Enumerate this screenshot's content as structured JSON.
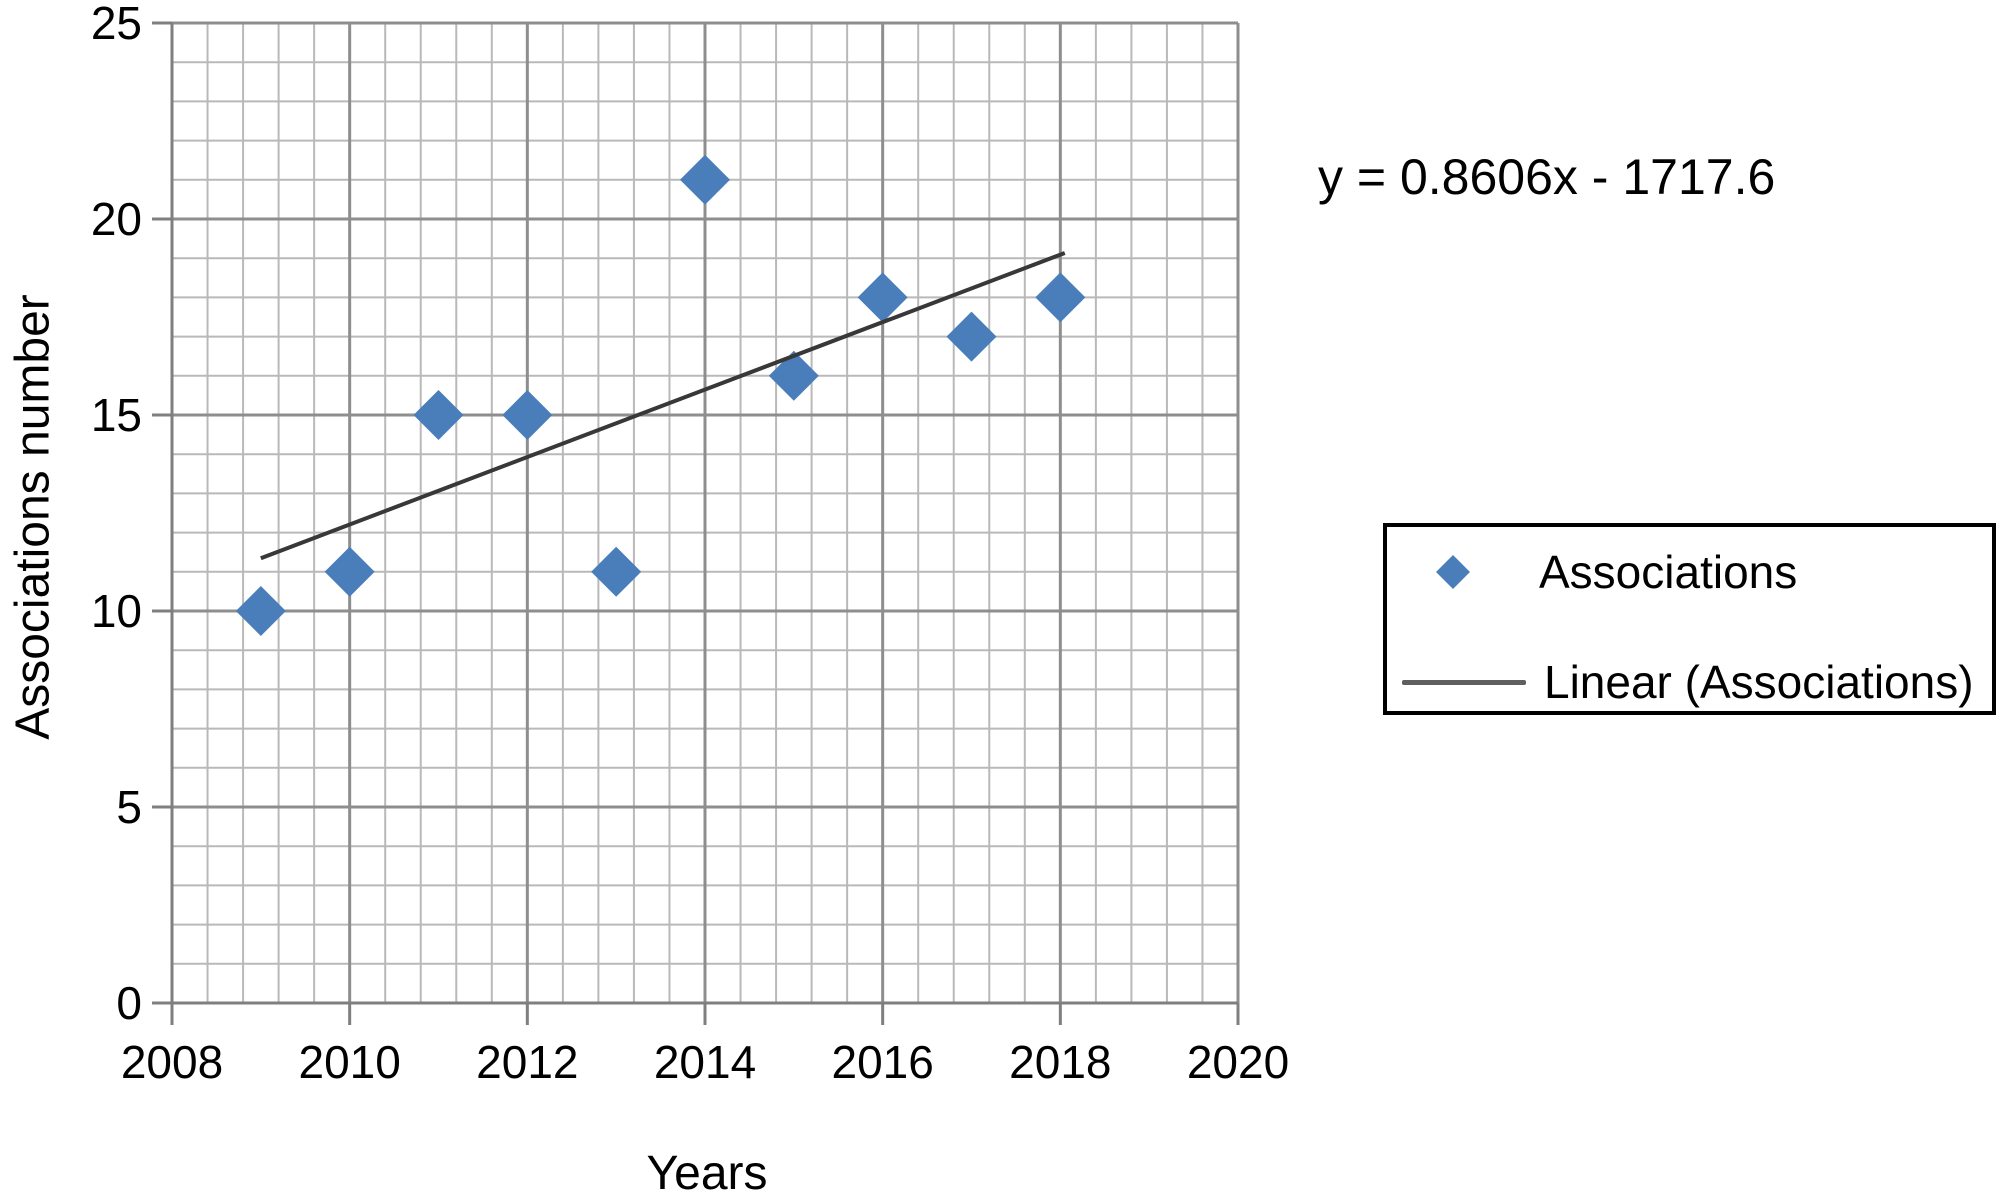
{
  "axis": {
    "x_title": "Years",
    "y_title": "Associations number"
  },
  "annotation": {
    "trendline_equation": "y = 0.8606x - 1717.6"
  },
  "legend": {
    "items": [
      {
        "label": "Associations",
        "marker": "diamond"
      },
      {
        "label": "Linear (Associations)",
        "marker": "line"
      }
    ]
  },
  "chart_data": {
    "type": "scatter",
    "title": "",
    "xlabel": "Years",
    "ylabel": "Associations number",
    "x": [
      2009,
      2010,
      2011,
      2012,
      2013,
      2014,
      2015,
      2016,
      2017,
      2018
    ],
    "series": [
      {
        "name": "Associations",
        "values": [
          10,
          11,
          15,
          15,
          11,
          21,
          16,
          18,
          17,
          18
        ]
      }
    ],
    "trendline": {
      "name": "Linear (Associations)",
      "equation": "y = 0.8606x - 1717.6",
      "slope": 0.8606,
      "intercept": -1717.6,
      "x_start": 2009,
      "x_end": 2018.05
    },
    "xlim": [
      2008,
      2020
    ],
    "ylim": [
      0,
      25
    ],
    "x_ticks": [
      2008,
      2010,
      2012,
      2014,
      2016,
      2018,
      2020
    ],
    "y_ticks": [
      0,
      5,
      10,
      15,
      20,
      25
    ],
    "x_minor_step": 0.4,
    "y_minor_step": 1,
    "grid": true,
    "legend_position": "right",
    "colors": {
      "marker": "#4a7eba",
      "trendline": "#383838",
      "legend_line": "#5f5f5f",
      "grid_minor": "#b9b9b9",
      "grid_major": "#8e8e8e",
      "axis": "#7f7f7f",
      "text": "#000000"
    }
  }
}
